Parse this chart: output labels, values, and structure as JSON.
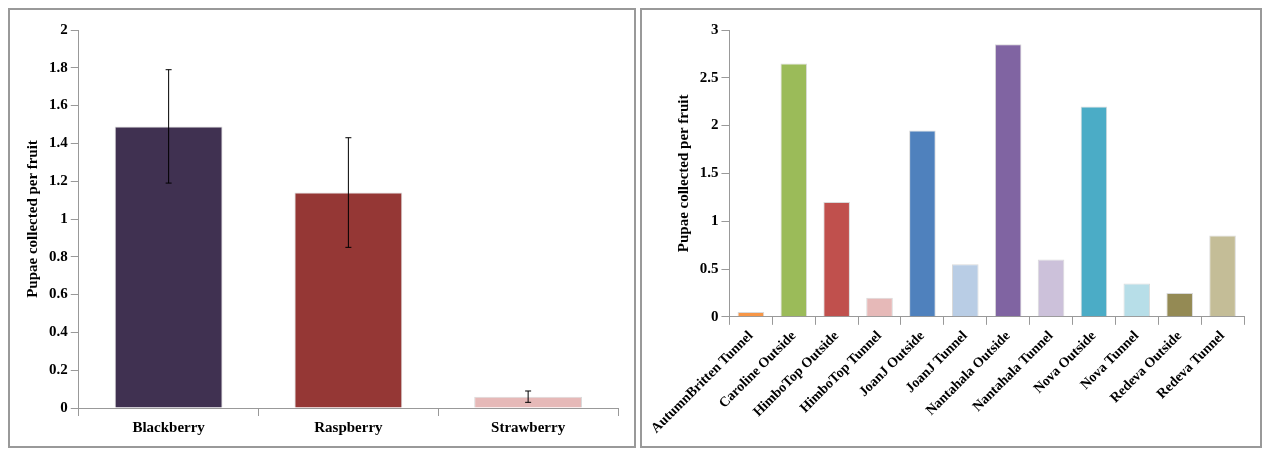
{
  "chart_data": [
    {
      "type": "bar",
      "ylabel": "Pupae collected per fruit",
      "categories": [
        "Blackberry",
        "Raspberry",
        "Strawberry"
      ],
      "values": [
        1.49,
        1.14,
        0.06
      ],
      "colors": [
        "#403151",
        "#953735",
        "#e6b9b8"
      ],
      "errors": [
        0.3,
        0.29,
        0.03
      ],
      "ylim": [
        0,
        2
      ],
      "yticks": [
        0,
        0.2,
        0.4,
        0.6,
        0.8,
        1,
        1.2,
        1.4,
        1.6,
        1.8,
        2
      ],
      "grid": false,
      "legend": false
    },
    {
      "type": "bar",
      "ylabel": "Pupae collected per fruit",
      "categories": [
        "AutumnBritten Tunnel",
        "Caroline Outside",
        "HimboTop Outside",
        "HimboTop Tunnel",
        "JoanJ Outside",
        "JoanJ Tunnel",
        "Nantahala Outside",
        "Nantahala Tunnel",
        "Nova Outside",
        "Nova Tunnel",
        "Redeva Outside",
        "Redeva Tunnel"
      ],
      "values": [
        0.05,
        2.65,
        1.2,
        0.2,
        1.95,
        0.55,
        2.85,
        0.6,
        2.2,
        0.35,
        0.25,
        0.85
      ],
      "colors": [
        "#f79646",
        "#9bbb59",
        "#c0504d",
        "#e6b9b8",
        "#4f81bd",
        "#b9cde5",
        "#8064a2",
        "#ccc1da",
        "#4bacc6",
        "#b7dee8",
        "#948a54",
        "#c4bd97"
      ],
      "ylim": [
        0,
        3
      ],
      "yticks": [
        0,
        0.5,
        1,
        1.5,
        2,
        2.5,
        3
      ],
      "grid": false,
      "legend": false
    }
  ]
}
